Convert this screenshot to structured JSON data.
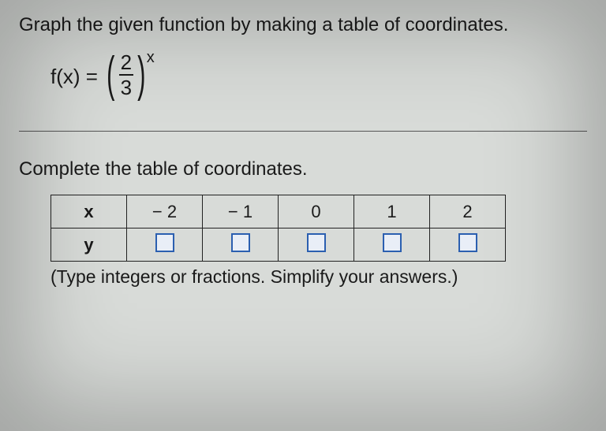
{
  "instruction": "Graph the given function by making a table of coordinates.",
  "formula": {
    "lhs": "f(x) =",
    "numerator": "2",
    "denominator": "3",
    "exponent": "x"
  },
  "subhead": "Complete the table of coordinates.",
  "table": {
    "row_x_label": "x",
    "row_y_label": "y",
    "x_values": [
      "− 2",
      "− 1",
      "0",
      "1",
      "2"
    ]
  },
  "hint": "(Type integers or fractions. Simplify your answers.)",
  "colors": {
    "background": "#d8dbd8",
    "text": "#1a1a1a",
    "border": "#222222",
    "input_border": "#2b5fb0",
    "input_fill": "#e9eef7"
  },
  "typography": {
    "body_fontsize": 24,
    "formula_fontsize": 26,
    "cell_fontsize": 22
  }
}
